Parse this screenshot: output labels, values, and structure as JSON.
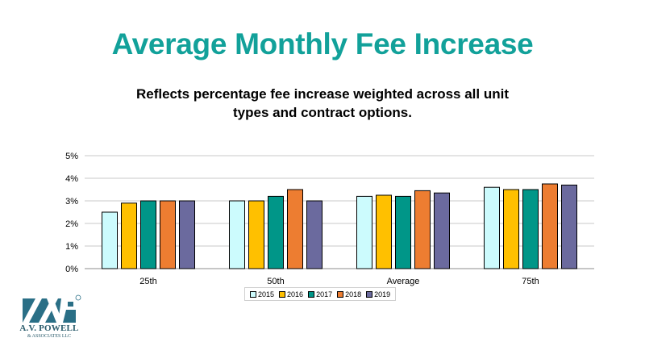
{
  "slide": {
    "title": "Average Monthly Fee Increase",
    "subtitle": "Reflects percentage fee increase weighted across all unit types and contract options.",
    "title_color": "#12a19a"
  },
  "logo": {
    "icon": "avp-logo-icon",
    "name": "A.V. POWELL",
    "sub": "& ASSOCIATES LLC"
  },
  "chart_data": {
    "type": "bar",
    "title": "",
    "xlabel": "",
    "ylabel": "",
    "categories": [
      "25th",
      "50th",
      "Average",
      "75th"
    ],
    "series": [
      {
        "name": "2015",
        "color": "#ccfbfd",
        "values": [
          2.5,
          3.0,
          3.2,
          3.6
        ]
      },
      {
        "name": "2016",
        "color": "#ffc000",
        "values": [
          2.9,
          3.0,
          3.25,
          3.5
        ]
      },
      {
        "name": "2017",
        "color": "#009688",
        "values": [
          3.0,
          3.2,
          3.2,
          3.5
        ]
      },
      {
        "name": "2018",
        "color": "#ed7d31",
        "values": [
          3.0,
          3.5,
          3.45,
          3.75
        ]
      },
      {
        "name": "2019",
        "color": "#6b6a9e",
        "values": [
          3.0,
          3.0,
          3.35,
          3.7
        ]
      }
    ],
    "ylim": [
      0,
      5
    ],
    "yticks": [
      "0%",
      "1%",
      "2%",
      "3%",
      "4%",
      "5%"
    ],
    "grid": true,
    "legend": "bottom"
  }
}
